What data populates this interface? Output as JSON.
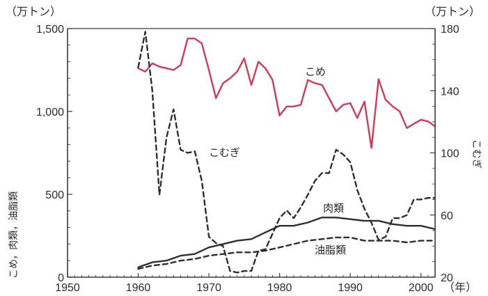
{
  "chart_data": {
    "type": "line",
    "left_unit": "（万トン）",
    "right_unit": "（万トン）",
    "left_axis_title": "こめ，肉類，油脂類",
    "right_axis_title": "こむぎ",
    "x_unit": "（年）",
    "xlim": [
      1950,
      2002
    ],
    "ylim_left": [
      0,
      1500
    ],
    "ylim_right": [
      20,
      180
    ],
    "x_ticks": [
      "1950",
      "1960",
      "1970",
      "1980",
      "1990",
      "2000"
    ],
    "y_ticks_left": [
      "0",
      "500",
      "1,000",
      "1,500"
    ],
    "y_ticks_right": [
      "20",
      "60",
      "100",
      "140",
      "180"
    ],
    "colors": {
      "rice": "#d03a55",
      "ink": "#2e2e2e",
      "axis": "#3a3a3a"
    },
    "series": [
      {
        "name": "こめ",
        "axis": "left",
        "style": "solid",
        "color": "#d03a55",
        "x": [
          1960,
          1961,
          1962,
          1963,
          1964,
          1965,
          1966,
          1967,
          1968,
          1969,
          1970,
          1971,
          1972,
          1973,
          1974,
          1975,
          1976,
          1977,
          1978,
          1979,
          1980,
          1981,
          1982,
          1983,
          1984,
          1985,
          1986,
          1987,
          1988,
          1989,
          1990,
          1991,
          1992,
          1993,
          1994,
          1995,
          1996,
          1997,
          1998,
          1999,
          2000,
          2001,
          2002
        ],
        "y": [
          1260,
          1240,
          1290,
          1270,
          1260,
          1250,
          1280,
          1440,
          1440,
          1410,
          1250,
          1080,
          1170,
          1200,
          1240,
          1320,
          1160,
          1300,
          1260,
          1190,
          975,
          1030,
          1030,
          1040,
          1190,
          1170,
          1160,
          1080,
          1000,
          1040,
          1050,
          960,
          1060,
          780,
          1195,
          1070,
          1030,
          1000,
          900,
          925,
          950,
          940,
          910
        ]
      },
      {
        "name": "こむぎ",
        "axis": "right",
        "style": "dashed",
        "color": "#2e2e2e",
        "x": [
          1960,
          1961,
          1962,
          1963,
          1964,
          1965,
          1966,
          1967,
          1968,
          1969,
          1970,
          1971,
          1972,
          1973,
          1974,
          1975,
          1976,
          1977,
          1978,
          1979,
          1980,
          1981,
          1982,
          1983,
          1984,
          1985,
          1986,
          1987,
          1988,
          1989,
          1990,
          1991,
          1992,
          1993,
          1994,
          1995,
          1996,
          1997,
          1998,
          1999,
          2000,
          2001,
          2002
        ],
        "y": [
          155,
          178,
          140,
          73,
          110,
          128,
          102,
          100,
          101,
          82,
          46,
          42,
          40,
          24,
          23,
          24,
          24,
          37,
          38,
          48,
          58,
          63,
          58,
          65,
          73,
          82,
          87,
          87,
          102,
          99,
          94,
          76,
          64,
          55,
          44,
          46,
          58,
          58,
          60,
          70,
          70,
          71,
          71
        ]
      },
      {
        "name": "肉類",
        "axis": "left",
        "style": "solid",
        "color": "#2e2e2e",
        "x": [
          1960,
          1962,
          1964,
          1966,
          1968,
          1970,
          1972,
          1974,
          1976,
          1978,
          1980,
          1982,
          1984,
          1986,
          1988,
          1990,
          1992,
          1994,
          1996,
          1998,
          2000,
          2002
        ],
        "y": [
          60,
          90,
          100,
          130,
          140,
          180,
          200,
          220,
          230,
          270,
          310,
          310,
          330,
          360,
          360,
          350,
          340,
          340,
          320,
          310,
          310,
          290
        ]
      },
      {
        "name": "油脂類",
        "axis": "left",
        "style": "dashed",
        "color": "#2e2e2e",
        "x": [
          1960,
          1962,
          1964,
          1966,
          1968,
          1970,
          1972,
          1974,
          1976,
          1978,
          1980,
          1982,
          1984,
          1986,
          1988,
          1990,
          1992,
          1994,
          1996,
          1998,
          2000,
          2002
        ],
        "y": [
          50,
          70,
          80,
          100,
          110,
          130,
          140,
          150,
          150,
          160,
          180,
          200,
          220,
          230,
          240,
          240,
          220,
          220,
          220,
          210,
          220,
          220
        ]
      }
    ]
  }
}
